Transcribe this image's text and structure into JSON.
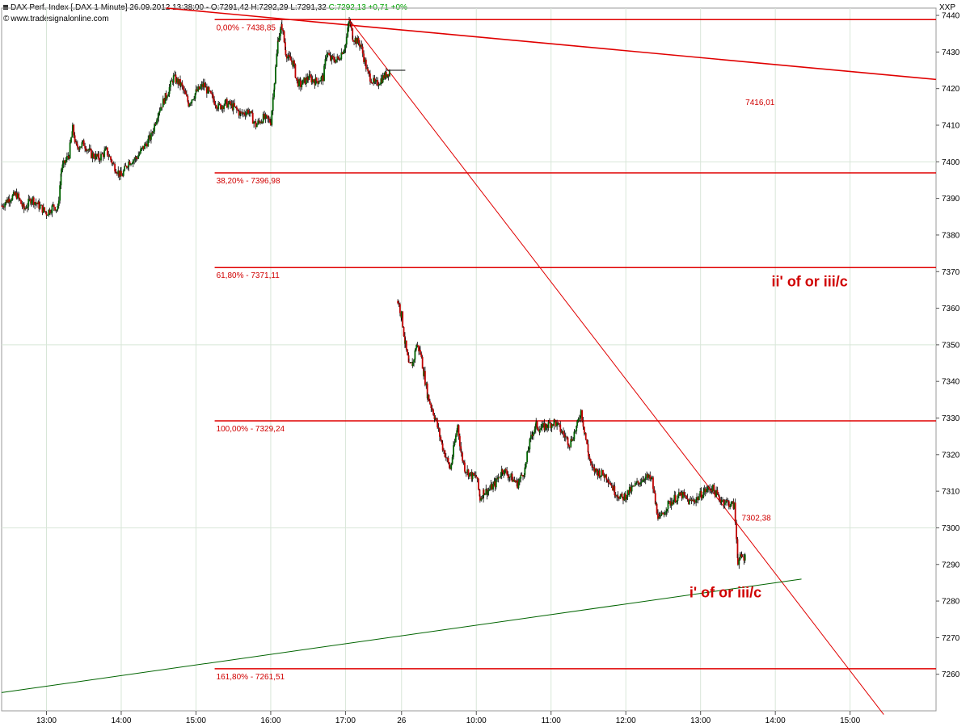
{
  "header": {
    "title_prefix": "DAX Perf. Index [.DAX  1 Minute] 26.09.2012 13:38:00 - O:7291,42 H:7292,29 L:7291,32 ",
    "title_close": "C:7292,13",
    "title_change": "+0,71",
    "title_pct": "+0%",
    "source": "www.tradesignalonline.com",
    "symbol": "XXP"
  },
  "colors": {
    "fib_line": "#e00000",
    "trend_red": "#e00000",
    "trend_green": "#006400",
    "candle_up": "#006400",
    "candle_down": "#c00000",
    "grid": "#d8e6d8",
    "annotation": "#d00000"
  },
  "chart_data": {
    "type": "candlestick",
    "instrument": "DAX Perf. Index",
    "interval": "1 Minute",
    "ylim": [
      7250,
      7442
    ],
    "y_ticks": [
      7260,
      7270,
      7280,
      7290,
      7300,
      7310,
      7320,
      7330,
      7340,
      7350,
      7360,
      7370,
      7380,
      7390,
      7400,
      7410,
      7420,
      7430,
      7440
    ],
    "x_ticks": [
      "13:00",
      "14:00",
      "15:00",
      "16:00",
      "17:00",
      "26",
      "10:00",
      "11:00",
      "12:00",
      "13:00",
      "14:00",
      "15:00"
    ],
    "x_tick_slots": [
      0.6,
      1.6,
      2.6,
      3.6,
      4.6,
      5.35,
      6.35,
      7.35,
      8.35,
      9.35,
      10.35,
      11.35
    ],
    "slot_range": [
      0,
      12.5
    ],
    "fib_levels": [
      {
        "label": "0,00% - 7438,85",
        "value": 7438.85
      },
      {
        "label": "38,20% - 7396,98",
        "value": 7396.98
      },
      {
        "label": "61,80% - 7371,11",
        "value": 7371.11
      },
      {
        "label": "100,00% - 7329,24",
        "value": 7329.24
      },
      {
        "label": "161,80% - 7261,51",
        "value": 7261.51
      }
    ],
    "trendlines": [
      {
        "name": "upper-red",
        "x1": 2.2,
        "y1": 7442,
        "x2": 12.5,
        "y2": 7422.5,
        "color": "trend_red",
        "width": 1.6
      },
      {
        "name": "descending-red",
        "x1": 4.65,
        "y1": 7438.85,
        "x2": 11.8,
        "y2": 7249,
        "color": "trend_red",
        "width": 1.0
      },
      {
        "name": "rising-green",
        "x1": 0,
        "y1": 7255,
        "x2": 10.7,
        "y2": 7286,
        "color": "trend_green",
        "width": 1.0
      }
    ],
    "annotations": [
      {
        "text": "7416,01",
        "x": 9.95,
        "y": 7415.5,
        "size": 10,
        "weight": "normal"
      },
      {
        "text": "7302,38",
        "x": 9.9,
        "y": 7302,
        "size": 10,
        "weight": "normal"
      },
      {
        "text": "ii' of or iii/c",
        "x": 10.3,
        "y": 7366,
        "size": 18,
        "weight": "bold"
      },
      {
        "text": "i' of or iii/c",
        "x": 9.2,
        "y": 7281,
        "size": 18,
        "weight": "bold"
      }
    ],
    "price_path": [
      [
        0.0,
        7388
      ],
      [
        0.1,
        7390
      ],
      [
        0.2,
        7391
      ],
      [
        0.3,
        7387
      ],
      [
        0.4,
        7390
      ],
      [
        0.5,
        7388
      ],
      [
        0.6,
        7386
      ],
      [
        0.7,
        7388
      ],
      [
        0.75,
        7387
      ],
      [
        0.8,
        7398
      ],
      [
        0.9,
        7402
      ],
      [
        0.95,
        7409
      ],
      [
        1.0,
        7404
      ],
      [
        1.1,
        7405
      ],
      [
        1.2,
        7402
      ],
      [
        1.3,
        7401
      ],
      [
        1.4,
        7403
      ],
      [
        1.5,
        7399
      ],
      [
        1.6,
        7396
      ],
      [
        1.7,
        7400
      ],
      [
        1.8,
        7401
      ],
      [
        1.9,
        7404
      ],
      [
        2.0,
        7407
      ],
      [
        2.1,
        7414
      ],
      [
        2.2,
        7418
      ],
      [
        2.3,
        7423
      ],
      [
        2.4,
        7421
      ],
      [
        2.5,
        7416
      ],
      [
        2.6,
        7419
      ],
      [
        2.7,
        7421
      ],
      [
        2.8,
        7418
      ],
      [
        2.9,
        7415
      ],
      [
        3.0,
        7416
      ],
      [
        3.1,
        7415
      ],
      [
        3.2,
        7413
      ],
      [
        3.3,
        7414
      ],
      [
        3.4,
        7410
      ],
      [
        3.5,
        7412
      ],
      [
        3.6,
        7411
      ],
      [
        3.65,
        7422
      ],
      [
        3.7,
        7434
      ],
      [
        3.75,
        7437
      ],
      [
        3.8,
        7430
      ],
      [
        3.85,
        7428
      ],
      [
        3.9,
        7427
      ],
      [
        3.95,
        7422
      ],
      [
        4.0,
        7421
      ],
      [
        4.1,
        7423
      ],
      [
        4.2,
        7422
      ],
      [
        4.3,
        7423
      ],
      [
        4.35,
        7430
      ],
      [
        4.4,
        7428
      ],
      [
        4.5,
        7428
      ],
      [
        4.6,
        7432
      ],
      [
        4.65,
        7438.5
      ],
      [
        4.7,
        7434
      ],
      [
        4.8,
        7432
      ],
      [
        4.9,
        7424
      ],
      [
        5.0,
        7421
      ],
      [
        5.1,
        7423
      ],
      [
        5.2,
        7425
      ],
      [
        5.3,
        7362
      ],
      [
        5.35,
        7358
      ],
      [
        5.4,
        7350
      ],
      [
        5.45,
        7344
      ],
      [
        5.5,
        7345
      ],
      [
        5.55,
        7350
      ],
      [
        5.6,
        7348
      ],
      [
        5.65,
        7342
      ],
      [
        5.7,
        7336
      ],
      [
        5.8,
        7330
      ],
      [
        5.9,
        7322
      ],
      [
        6.0,
        7316
      ],
      [
        6.1,
        7328
      ],
      [
        6.15,
        7320
      ],
      [
        6.2,
        7316
      ],
      [
        6.3,
        7314
      ],
      [
        6.35,
        7314
      ],
      [
        6.4,
        7308
      ],
      [
        6.45,
        7310
      ],
      [
        6.5,
        7310
      ],
      [
        6.6,
        7312
      ],
      [
        6.7,
        7316
      ],
      [
        6.8,
        7314
      ],
      [
        6.9,
        7312
      ],
      [
        7.0,
        7316
      ],
      [
        7.05,
        7322
      ],
      [
        7.1,
        7326
      ],
      [
        7.15,
        7328
      ],
      [
        7.2,
        7327
      ],
      [
        7.3,
        7328
      ],
      [
        7.4,
        7329
      ],
      [
        7.5,
        7326
      ],
      [
        7.6,
        7323
      ],
      [
        7.7,
        7328
      ],
      [
        7.75,
        7332
      ],
      [
        7.8,
        7326
      ],
      [
        7.85,
        7320
      ],
      [
        7.9,
        7316
      ],
      [
        8.0,
        7315
      ],
      [
        8.1,
        7314
      ],
      [
        8.2,
        7310
      ],
      [
        8.3,
        7308
      ],
      [
        8.4,
        7310
      ],
      [
        8.5,
        7312
      ],
      [
        8.6,
        7314
      ],
      [
        8.7,
        7313
      ],
      [
        8.75,
        7306
      ],
      [
        8.8,
        7302
      ],
      [
        8.9,
        7306
      ],
      [
        9.0,
        7308
      ],
      [
        9.1,
        7309
      ],
      [
        9.2,
        7307
      ],
      [
        9.3,
        7308
      ],
      [
        9.4,
        7310
      ],
      [
        9.5,
        7311
      ],
      [
        9.6,
        7308
      ],
      [
        9.7,
        7307
      ],
      [
        9.8,
        7306
      ],
      [
        9.85,
        7291
      ],
      [
        9.9,
        7292
      ],
      [
        9.95,
        7292
      ]
    ]
  }
}
